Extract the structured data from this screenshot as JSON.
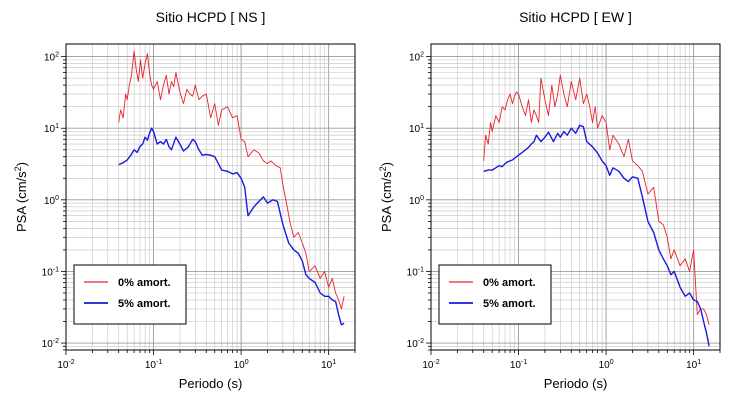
{
  "chart_data": [
    {
      "type": "line",
      "title": "Sitio HCPD [ NS ]",
      "xlabel": "Periodo (s)",
      "ylabel_base": "PSA (cm/s",
      "ylabel_sup": "2",
      "ylabel_close": ")",
      "x_scale": "log",
      "y_scale": "log",
      "xlim": [
        0.01,
        20
      ],
      "ylim": [
        0.008,
        150
      ],
      "grid": true,
      "legend_position": "bottom-left",
      "x_ticks": [
        {
          "base": "10",
          "exp": "-2"
        },
        {
          "base": "10",
          "exp": "-1"
        },
        {
          "base": "10",
          "exp": "0"
        },
        {
          "base": "10",
          "exp": "1"
        }
      ],
      "y_ticks": [
        {
          "base": "10",
          "exp": "-2"
        },
        {
          "base": "10",
          "exp": "-1"
        },
        {
          "base": "10",
          "exp": "0"
        },
        {
          "base": "10",
          "exp": "1"
        },
        {
          "base": "10",
          "exp": "2"
        }
      ],
      "series": [
        {
          "name": "0% amort.",
          "color": "#e8232a",
          "x": [
            0.04,
            0.042,
            0.045,
            0.048,
            0.05,
            0.053,
            0.056,
            0.06,
            0.063,
            0.067,
            0.071,
            0.075,
            0.08,
            0.085,
            0.09,
            0.095,
            0.1,
            0.11,
            0.12,
            0.13,
            0.14,
            0.15,
            0.16,
            0.17,
            0.18,
            0.2,
            0.22,
            0.24,
            0.26,
            0.28,
            0.3,
            0.33,
            0.36,
            0.4,
            0.45,
            0.5,
            0.55,
            0.6,
            0.7,
            0.8,
            0.9,
            1.0,
            1.1,
            1.2,
            1.4,
            1.6,
            1.8,
            2.0,
            2.2,
            2.5,
            2.8,
            3.0,
            3.3,
            3.6,
            4.0,
            4.5,
            5.0,
            5.5,
            6.0,
            7.0,
            8.0,
            9.0,
            10.0,
            11.0,
            12.0,
            13.0,
            14.0,
            15.0
          ],
          "y": [
            12,
            18,
            14,
            30,
            25,
            40,
            55,
            120,
            70,
            45,
            90,
            50,
            80,
            110,
            60,
            40,
            35,
            45,
            25,
            40,
            55,
            30,
            45,
            38,
            60,
            32,
            22,
            35,
            30,
            28,
            40,
            25,
            28,
            30,
            14,
            22,
            11,
            18,
            20,
            14,
            15,
            7,
            6.5,
            4,
            5,
            4.5,
            3.5,
            3.2,
            3.5,
            3,
            2.8,
            1.6,
            0.9,
            0.5,
            0.3,
            0.35,
            0.25,
            0.18,
            0.1,
            0.12,
            0.08,
            0.1,
            0.06,
            0.08,
            0.05,
            0.04,
            0.03,
            0.045
          ]
        },
        {
          "name": "5% amort.",
          "color": "#1a1adc",
          "x": [
            0.04,
            0.045,
            0.05,
            0.055,
            0.06,
            0.065,
            0.07,
            0.075,
            0.08,
            0.085,
            0.09,
            0.095,
            0.1,
            0.11,
            0.12,
            0.13,
            0.14,
            0.15,
            0.16,
            0.18,
            0.2,
            0.22,
            0.25,
            0.28,
            0.3,
            0.33,
            0.36,
            0.4,
            0.45,
            0.5,
            0.55,
            0.6,
            0.7,
            0.8,
            0.9,
            1.0,
            1.1,
            1.2,
            1.4,
            1.6,
            1.8,
            2.0,
            2.3,
            2.6,
            3.0,
            3.5,
            4.0,
            4.5,
            5.0,
            5.5,
            6.0,
            7.0,
            8.0,
            9.0,
            10.0,
            11.0,
            12.0,
            13.0,
            14.0,
            15.0
          ],
          "y": [
            3.1,
            3.3,
            3.6,
            4.2,
            5,
            4.6,
            5.6,
            6,
            7.5,
            6.8,
            8.5,
            10,
            9,
            6,
            6.5,
            6,
            7,
            5.5,
            5,
            7.5,
            6,
            4.8,
            5.5,
            7,
            6.5,
            5,
            4.2,
            4.3,
            4.2,
            4,
            3.2,
            2.6,
            2.5,
            2.3,
            2.4,
            2,
            1.5,
            0.6,
            0.8,
            0.95,
            1.1,
            0.9,
            1,
            0.95,
            0.45,
            0.25,
            0.2,
            0.18,
            0.14,
            0.09,
            0.08,
            0.07,
            0.05,
            0.045,
            0.045,
            0.04,
            0.038,
            0.025,
            0.018,
            0.019
          ]
        }
      ]
    },
    {
      "type": "line",
      "title": "Sitio HCPD [ EW ]",
      "xlabel": "Periodo (s)",
      "ylabel_base": "PSA (cm/s",
      "ylabel_sup": "2",
      "ylabel_close": ")",
      "x_scale": "log",
      "y_scale": "log",
      "xlim": [
        0.01,
        20
      ],
      "ylim": [
        0.008,
        150
      ],
      "grid": true,
      "legend_position": "bottom-left",
      "x_ticks": [
        {
          "base": "10",
          "exp": "-2"
        },
        {
          "base": "10",
          "exp": "-1"
        },
        {
          "base": "10",
          "exp": "0"
        },
        {
          "base": "10",
          "exp": "1"
        }
      ],
      "y_ticks": [
        {
          "base": "10",
          "exp": "-2"
        },
        {
          "base": "10",
          "exp": "-1"
        },
        {
          "base": "10",
          "exp": "0"
        },
        {
          "base": "10",
          "exp": "1"
        },
        {
          "base": "10",
          "exp": "2"
        }
      ],
      "series": [
        {
          "name": "0% amort.",
          "color": "#e8232a",
          "x": [
            0.04,
            0.042,
            0.045,
            0.048,
            0.05,
            0.055,
            0.06,
            0.065,
            0.07,
            0.075,
            0.08,
            0.085,
            0.09,
            0.095,
            0.1,
            0.11,
            0.12,
            0.13,
            0.14,
            0.15,
            0.16,
            0.17,
            0.18,
            0.2,
            0.22,
            0.24,
            0.26,
            0.28,
            0.3,
            0.33,
            0.36,
            0.4,
            0.45,
            0.5,
            0.55,
            0.6,
            0.65,
            0.7,
            0.75,
            0.8,
            0.9,
            1.0,
            1.1,
            1.2,
            1.4,
            1.6,
            1.8,
            2.0,
            2.3,
            2.6,
            3.0,
            3.5,
            4.0,
            4.5,
            5.0,
            5.5,
            6.0,
            7.0,
            8.0,
            9.0,
            10.0,
            11.0,
            12.0,
            13.0,
            14.0,
            15.0
          ],
          "y": [
            3.5,
            8,
            6,
            12,
            9,
            15,
            12,
            20,
            18,
            25,
            30,
            22,
            28,
            32,
            30,
            20,
            15,
            25,
            12,
            18,
            15,
            12,
            50,
            25,
            15,
            40,
            20,
            30,
            55,
            30,
            20,
            45,
            25,
            50,
            22,
            30,
            20,
            12,
            20,
            10,
            15,
            12,
            5,
            8,
            6,
            4,
            7,
            3.5,
            3,
            2.5,
            1.2,
            1.5,
            0.5,
            0.45,
            0.3,
            0.15,
            0.2,
            0.12,
            0.15,
            0.1,
            0.2,
            0.025,
            0.03,
            0.03,
            0.025,
            0.018
          ]
        },
        {
          "name": "5% amort.",
          "color": "#1a1adc",
          "x": [
            0.04,
            0.045,
            0.05,
            0.055,
            0.06,
            0.065,
            0.07,
            0.075,
            0.08,
            0.085,
            0.09,
            0.095,
            0.1,
            0.11,
            0.12,
            0.13,
            0.14,
            0.15,
            0.16,
            0.18,
            0.2,
            0.22,
            0.25,
            0.28,
            0.3,
            0.33,
            0.36,
            0.4,
            0.45,
            0.5,
            0.55,
            0.6,
            0.7,
            0.8,
            0.9,
            1.0,
            1.1,
            1.2,
            1.4,
            1.6,
            1.8,
            2.0,
            2.3,
            2.6,
            3.0,
            3.5,
            4.0,
            4.5,
            5.0,
            5.5,
            6.0,
            7.0,
            8.0,
            9.0,
            10.0,
            11.0,
            12.0,
            13.0,
            14.0,
            15.0
          ],
          "y": [
            2.5,
            2.6,
            2.6,
            2.8,
            3,
            2.9,
            3.2,
            3.4,
            3.5,
            3.6,
            3.8,
            4,
            4.2,
            4.6,
            5,
            5.4,
            6,
            6.5,
            8,
            6.5,
            7.5,
            8.8,
            6.5,
            8.5,
            7.5,
            9,
            8,
            10,
            8.5,
            11,
            10.5,
            6.5,
            5.5,
            4.5,
            3.5,
            3,
            2.2,
            2.8,
            2.5,
            2,
            1.8,
            2.1,
            2,
            1.1,
            0.5,
            0.35,
            0.2,
            0.15,
            0.12,
            0.09,
            0.1,
            0.06,
            0.045,
            0.05,
            0.04,
            0.038,
            0.03,
            0.02,
            0.014,
            0.009
          ]
        }
      ]
    }
  ]
}
